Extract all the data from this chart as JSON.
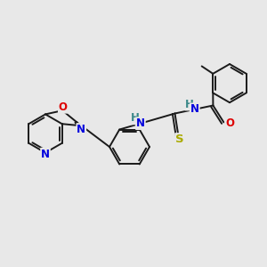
{
  "bg": "#e8e8e8",
  "bc": "#1a1a1a",
  "bw": 1.4,
  "colors": {
    "N": "#0000dd",
    "O": "#dd0000",
    "S": "#aaaa00",
    "H": "#3a8888"
  },
  "fs": 8.5
}
